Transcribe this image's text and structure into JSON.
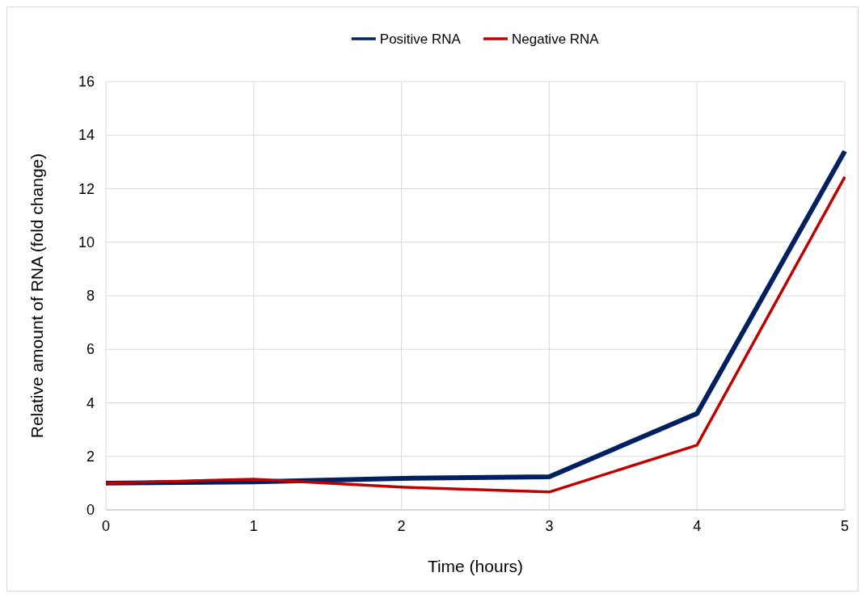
{
  "chart_data": {
    "type": "line",
    "xlabel": "Time (hours)",
    "ylabel": "Relative amount of RNA  (fold change)",
    "x": [
      0,
      1,
      2,
      3,
      4,
      5
    ],
    "series": [
      {
        "name": "Positive RNA",
        "color": "#002060",
        "values": [
          1.0,
          1.05,
          1.18,
          1.24,
          3.6,
          13.4
        ]
      },
      {
        "name": "Negative RNA",
        "color": "#c00000",
        "values": [
          1.0,
          1.15,
          0.85,
          0.67,
          2.42,
          12.44
        ]
      }
    ],
    "xlim": [
      0,
      5
    ],
    "xticks": [
      0,
      1,
      2,
      3,
      4,
      5
    ],
    "ylim": [
      0,
      16
    ],
    "yticks": [
      0,
      2,
      4,
      6,
      8,
      10,
      12,
      14,
      16
    ],
    "grid": true,
    "legend": "top",
    "marker": "none",
    "line_style": "solid"
  }
}
